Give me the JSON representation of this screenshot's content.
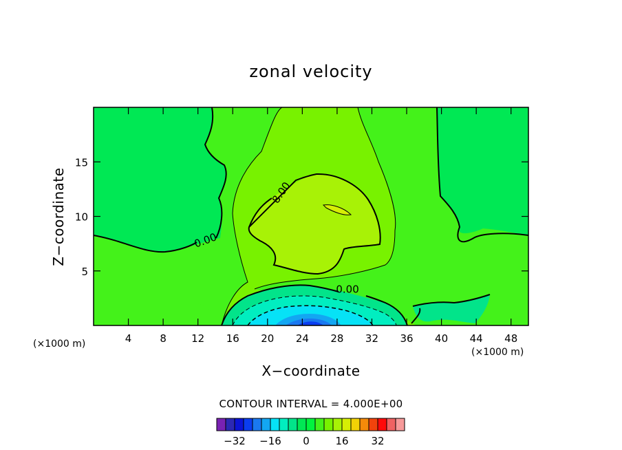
{
  "chart_data": {
    "type": "contour",
    "title": "zonal velocity",
    "xlabel": "X−coordinate",
    "ylabel": "Z−coordinate",
    "x_unit_left": "(×1000 m)",
    "x_unit_right": "(×1000 m)",
    "xlim": [
      0,
      50
    ],
    "ylim": [
      0,
      20
    ],
    "x_ticks": [
      4,
      8,
      12,
      16,
      20,
      24,
      28,
      32,
      36,
      40,
      44,
      48
    ],
    "y_ticks": [
      5,
      10,
      15
    ],
    "contour_interval_text": "CONTOUR INTERVAL = 4.000E+00",
    "contour_interval": 4.0,
    "contour_labels": [
      {
        "text": "0.00",
        "x": 13,
        "y": 7.5,
        "angle": -20
      },
      {
        "text": "8.00",
        "x": 21.9,
        "y": 12.0,
        "angle": -55
      },
      {
        "text": "0.00",
        "x": 29.2,
        "y": 3.0,
        "angle": 0
      }
    ],
    "colorbar": {
      "levels": [
        -36,
        -32,
        -28,
        -24,
        -20,
        -16,
        -12,
        -8,
        -4,
        0,
        4,
        8,
        12,
        16,
        20,
        24,
        28,
        32,
        36
      ],
      "tick_labels": [
        "−32",
        "−16",
        "0",
        "16",
        "32"
      ],
      "tick_values": [
        -32,
        -16,
        0,
        16,
        32
      ],
      "colors": [
        "#7a22b3",
        "#2c28b4",
        "#0b14d6",
        "#0a3df0",
        "#1a78f0",
        "#13a6f2",
        "#06e2f6",
        "#01eec0",
        "#02e48a",
        "#00e854",
        "#00f43e",
        "#44f21a",
        "#78f200",
        "#a8f206",
        "#d6ee05",
        "#f2d206",
        "#f58a0a",
        "#f2430c",
        "#ff0a0a",
        "#f06262",
        "#f79a9a"
      ]
    },
    "field_colors": {
      "band_0_4": "#00e854",
      "band_4_8": "#44f21a",
      "band_8_12": "#78f200",
      "band_12_16": "#a8f206",
      "band_16_20": "#d6ee05",
      "band_m4_0": "#02e48a",
      "band_m8_m4": "#01eec0",
      "band_m12_m8": "#06e2f6",
      "band_m16_m12": "#13a6f2",
      "band_m20_m16": "#1a78f0",
      "band_m24_m20": "#0a3df0"
    }
  }
}
